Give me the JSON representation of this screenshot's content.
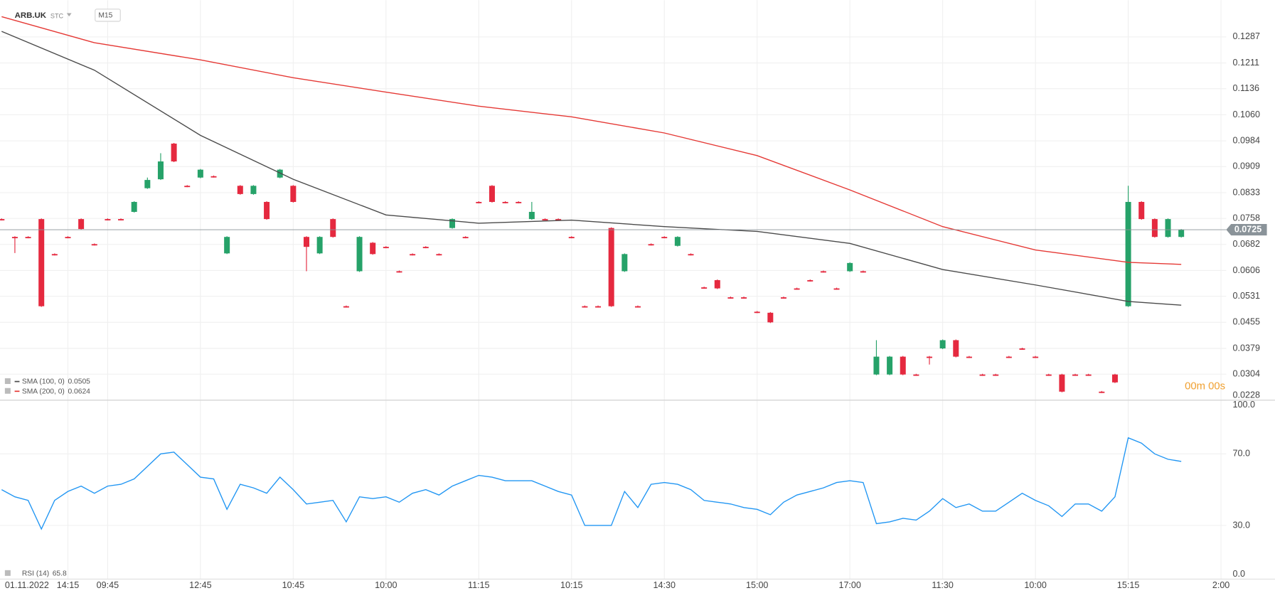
{
  "header": {
    "symbol": "ARB.UK",
    "exchange": "STC",
    "interval": "M15",
    "countdown": "00m 00s"
  },
  "chart_data": [
    {
      "type": "candlestick",
      "categories": [
        "01.11.2022",
        null,
        null,
        null,
        null,
        "14:15",
        null,
        null,
        "09:45",
        null,
        null,
        null,
        null,
        null,
        null,
        "12:45",
        null,
        null,
        null,
        null,
        null,
        null,
        "10:45",
        null,
        null,
        null,
        null,
        null,
        null,
        "10:00",
        null,
        null,
        null,
        null,
        null,
        null,
        "11:15",
        null,
        null,
        null,
        null,
        null,
        null,
        "10:15",
        null,
        null,
        null,
        null,
        null,
        null,
        "14:30",
        null,
        null,
        null,
        null,
        null,
        null,
        "15:00",
        null,
        null,
        null,
        null,
        null,
        null,
        "17:00",
        null,
        null,
        null,
        null,
        null,
        null,
        "11:30",
        null,
        null,
        null,
        null,
        null,
        null,
        "10:00",
        null,
        null,
        null,
        null,
        null,
        null,
        "15:15",
        null,
        null,
        null,
        null,
        null,
        null,
        "2:00"
      ],
      "open": [
        0.0756,
        0.0704,
        0.0704,
        0.0756,
        0.0654,
        0.0704,
        0.0756,
        0.0683,
        0.0756,
        0.0756,
        0.0777,
        0.0846,
        0.0872,
        0.0976,
        0.0853,
        0.0877,
        0.0881,
        0.0656,
        0.0853,
        0.0829,
        0.0806,
        0.0877,
        0.0853,
        0.0704,
        0.0656,
        0.0756,
        0.0502,
        0.0604,
        0.0687,
        0.0675,
        0.0604,
        0.0654,
        0.0675,
        0.0654,
        0.073,
        0.0704,
        0.0806,
        0.0853,
        0.0806,
        0.0806,
        0.0756,
        0.0756,
        0.0756,
        0.0704,
        0.0502,
        0.0502,
        0.073,
        0.0604,
        0.0502,
        0.0683,
        0.0704,
        0.0678,
        0.0654,
        0.0557,
        0.0578,
        0.0528,
        0.0528,
        0.0486,
        0.0483,
        0.0528,
        0.0554,
        0.0578,
        0.0604,
        0.0554,
        0.0604,
        0.0604,
        0.0303,
        0.0303,
        0.0355,
        0.0303,
        0.0355,
        0.0379,
        0.0403,
        0.0355,
        0.0303,
        0.0303,
        0.0355,
        0.0379,
        0.0355,
        0.0303,
        0.0303,
        0.0303,
        0.0303,
        0.0253,
        0.0303,
        0.0502,
        0.0806,
        0.0756,
        0.0704,
        0.0704,
        null,
        null,
        null
      ],
      "high": [
        0.0758,
        0.0706,
        0.0706,
        0.0758,
        0.0656,
        0.0706,
        0.0758,
        0.0685,
        0.0758,
        0.0758,
        0.0808,
        0.0877,
        0.0948,
        0.0978,
        0.0855,
        0.0902,
        0.0883,
        0.0706,
        0.0855,
        0.0855,
        0.0808,
        0.0902,
        0.0855,
        0.0706,
        0.0706,
        0.0758,
        0.0504,
        0.0706,
        0.0689,
        0.0677,
        0.0606,
        0.0656,
        0.0677,
        0.0656,
        0.0758,
        0.0706,
        0.0808,
        0.0855,
        0.0808,
        0.0808,
        0.0806,
        0.0758,
        0.0758,
        0.0706,
        0.0504,
        0.0504,
        0.0732,
        0.0656,
        0.0504,
        0.0685,
        0.0706,
        0.0706,
        0.0656,
        0.0559,
        0.058,
        0.053,
        0.053,
        0.0488,
        0.0485,
        0.053,
        0.0556,
        0.058,
        0.0606,
        0.0556,
        0.063,
        0.0606,
        0.0403,
        0.0357,
        0.0357,
        0.0305,
        0.0357,
        0.0405,
        0.0405,
        0.0357,
        0.0305,
        0.0305,
        0.0357,
        0.0381,
        0.0357,
        0.0305,
        0.0305,
        0.0305,
        0.0305,
        0.0255,
        0.0305,
        0.0853,
        0.0808,
        0.0758,
        0.0758,
        0.0727,
        null,
        null,
        null
      ],
      "low": [
        0.0752,
        0.0657,
        0.07,
        0.05,
        0.065,
        0.07,
        0.0725,
        0.0679,
        0.0752,
        0.0752,
        0.0775,
        0.0844,
        0.087,
        0.0922,
        0.0849,
        0.0875,
        0.0877,
        0.0654,
        0.0827,
        0.0827,
        0.0754,
        0.0875,
        0.0804,
        0.0604,
        0.0654,
        0.0702,
        0.0498,
        0.0602,
        0.0652,
        0.0671,
        0.06,
        0.065,
        0.0671,
        0.065,
        0.0728,
        0.07,
        0.0802,
        0.0804,
        0.0802,
        0.0802,
        0.0754,
        0.0752,
        0.0752,
        0.07,
        0.0498,
        0.0498,
        0.05,
        0.0602,
        0.0498,
        0.0679,
        0.07,
        0.0676,
        0.065,
        0.0553,
        0.0552,
        0.0524,
        0.0524,
        0.0482,
        0.0453,
        0.0524,
        0.055,
        0.0574,
        0.06,
        0.055,
        0.0602,
        0.06,
        0.0301,
        0.0301,
        0.0301,
        0.0299,
        0.0332,
        0.0377,
        0.0353,
        0.0351,
        0.0299,
        0.0299,
        0.0351,
        0.0375,
        0.0351,
        0.0299,
        0.0251,
        0.0299,
        0.0299,
        0.0249,
        0.0278,
        0.05,
        0.0754,
        0.0702,
        0.0702,
        0.0702,
        null,
        null,
        null
      ],
      "close": [
        0.0754,
        0.0702,
        0.0702,
        0.0502,
        0.0652,
        0.0702,
        0.0727,
        0.0681,
        0.0754,
        0.0754,
        0.0806,
        0.087,
        0.0924,
        0.0924,
        0.0851,
        0.09,
        0.0879,
        0.0704,
        0.0829,
        0.0853,
        0.0756,
        0.09,
        0.0806,
        0.0675,
        0.0704,
        0.0704,
        0.05,
        0.0704,
        0.0654,
        0.0673,
        0.0602,
        0.0652,
        0.0673,
        0.0652,
        0.0756,
        0.0702,
        0.0804,
        0.0806,
        0.0804,
        0.0804,
        0.0777,
        0.0754,
        0.0754,
        0.0702,
        0.05,
        0.05,
        0.0502,
        0.0654,
        0.05,
        0.0681,
        0.0702,
        0.0704,
        0.0652,
        0.0555,
        0.0554,
        0.0526,
        0.0526,
        0.0484,
        0.0455,
        0.0526,
        0.0552,
        0.0576,
        0.0602,
        0.0552,
        0.0628,
        0.0602,
        0.0355,
        0.0355,
        0.0303,
        0.0301,
        0.0353,
        0.0403,
        0.0355,
        0.0353,
        0.0301,
        0.0301,
        0.0353,
        0.0377,
        0.0353,
        0.0301,
        0.0253,
        0.0301,
        0.0301,
        0.0251,
        0.028,
        0.0806,
        0.0756,
        0.0704,
        0.0756,
        0.0725,
        null,
        null,
        null
      ],
      "up_color": "#26a269",
      "down_color": "#e5293f",
      "series": [
        {
          "name": "SMA (100, 0)",
          "legend_value": 0.0505,
          "color": "#4a4a4a",
          "x": [
            0,
            7,
            15,
            22,
            29,
            36,
            43,
            50,
            57,
            64,
            71,
            78,
            85,
            89
          ],
          "values": [
            0.1303,
            0.119,
            0.1,
            0.0872,
            0.0768,
            0.0744,
            0.0753,
            0.0734,
            0.072,
            0.0685,
            0.0609,
            0.0564,
            0.0516,
            0.0505
          ]
        },
        {
          "name": "SMA (200, 0)",
          "legend_value": 0.0624,
          "color": "#e53935",
          "x": [
            0,
            7,
            15,
            22,
            29,
            36,
            43,
            50,
            57,
            64,
            71,
            78,
            85,
            89
          ],
          "values": [
            0.1346,
            0.127,
            0.122,
            0.1168,
            0.1126,
            0.1085,
            0.1054,
            0.1007,
            0.0941,
            0.0841,
            0.0734,
            0.0666,
            0.063,
            0.0624
          ]
        }
      ],
      "last_price": 0.0725,
      "ylim": [
        0.0228,
        0.1394
      ],
      "yticks": [
        0.1287,
        0.1211,
        0.1136,
        {
          "value": 0.106,
          "label": "0.1060"
        },
        0.0984,
        0.0909,
        0.0833,
        0.0758,
        0.0682,
        0.0606,
        0.0531,
        0.0455,
        0.0379,
        0.0304,
        0.0228
      ],
      "grid": true
    },
    {
      "type": "line",
      "name": "RSI (14)",
      "legend_value": 65.8,
      "color": "#2196f3",
      "values": [
        50,
        46,
        44,
        28,
        44,
        49,
        52,
        48,
        52,
        53,
        56,
        63,
        70,
        71,
        64,
        57,
        56,
        39,
        53,
        51,
        48,
        57,
        50,
        42,
        43,
        44,
        32,
        46,
        45,
        46,
        43,
        48,
        50,
        47,
        52,
        55,
        58,
        57,
        55,
        55,
        55,
        52,
        49,
        47,
        30,
        30,
        30,
        49,
        40,
        53,
        54,
        53,
        50,
        44,
        43,
        42,
        40,
        39,
        36,
        43,
        47,
        49,
        51,
        54,
        55,
        54,
        31,
        32,
        34,
        33,
        38,
        45,
        40,
        42,
        38,
        38,
        43,
        48,
        44,
        41,
        35,
        42,
        42,
        38,
        46,
        79,
        76,
        70,
        67,
        65.8,
        null,
        null,
        null
      ],
      "ylim": [
        0,
        100
      ],
      "yticks": [
        {
          "value": 100,
          "label": "100.0"
        },
        {
          "value": 70,
          "label": "70.0"
        },
        {
          "value": 30,
          "label": "30.0"
        },
        {
          "value": 0,
          "label": "0.0"
        }
      ],
      "grid": true
    }
  ]
}
